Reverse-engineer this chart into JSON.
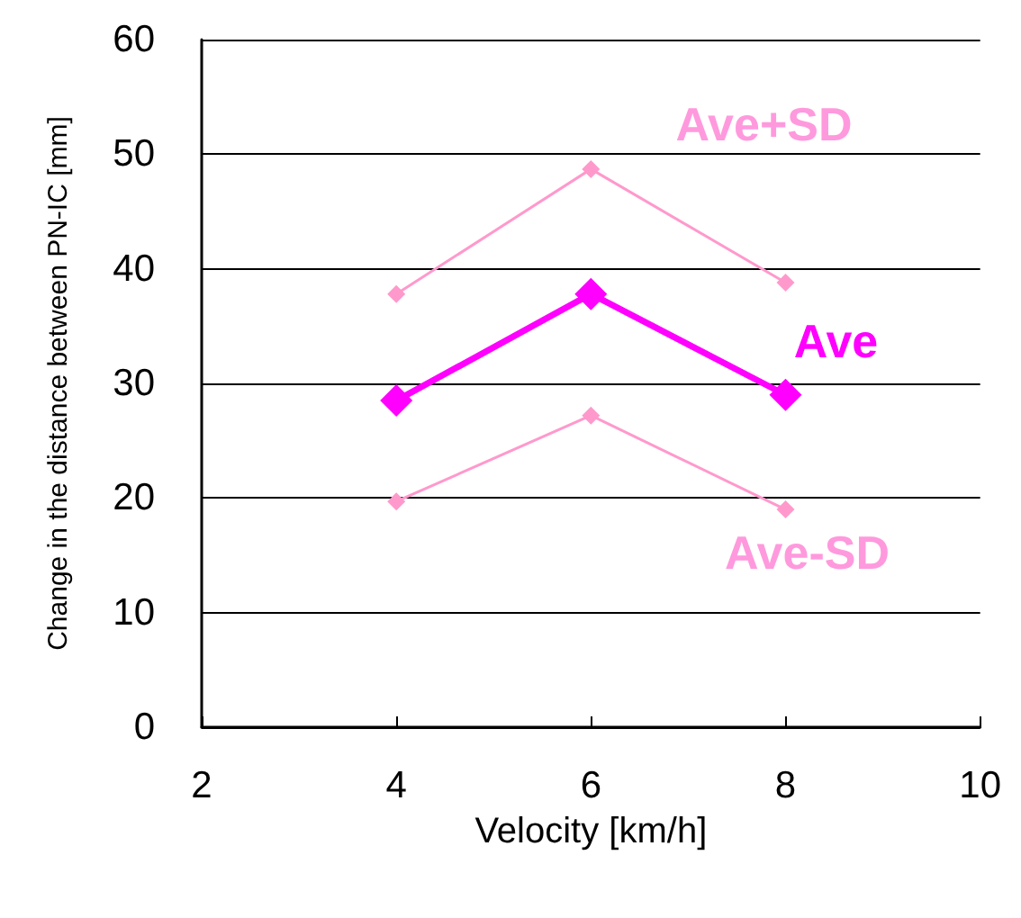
{
  "chart_data": {
    "type": "line",
    "xlabel": "Velocity [km/h]",
    "ylabel": "Change in the distance between PN-IC [mm]",
    "x": [
      4,
      6,
      8
    ],
    "series": [
      {
        "name": "Ave+SD",
        "color": "#ff99cc",
        "values": [
          37.8,
          48.7,
          38.8
        ]
      },
      {
        "name": "Ave",
        "color": "#ff00ff",
        "values": [
          28.5,
          37.8,
          29.0
        ]
      },
      {
        "name": "Ave-SD",
        "color": "#ff99cc",
        "values": [
          19.7,
          27.2,
          19.0
        ]
      }
    ],
    "xlim": [
      2,
      10
    ],
    "xticks": [
      2,
      4,
      6,
      8,
      10
    ],
    "ylim": [
      0,
      60
    ],
    "yticks": [
      0,
      10,
      20,
      30,
      40,
      50,
      60
    ],
    "grid": "y",
    "legend": false,
    "marker": "diamond",
    "line_style": "solid"
  }
}
